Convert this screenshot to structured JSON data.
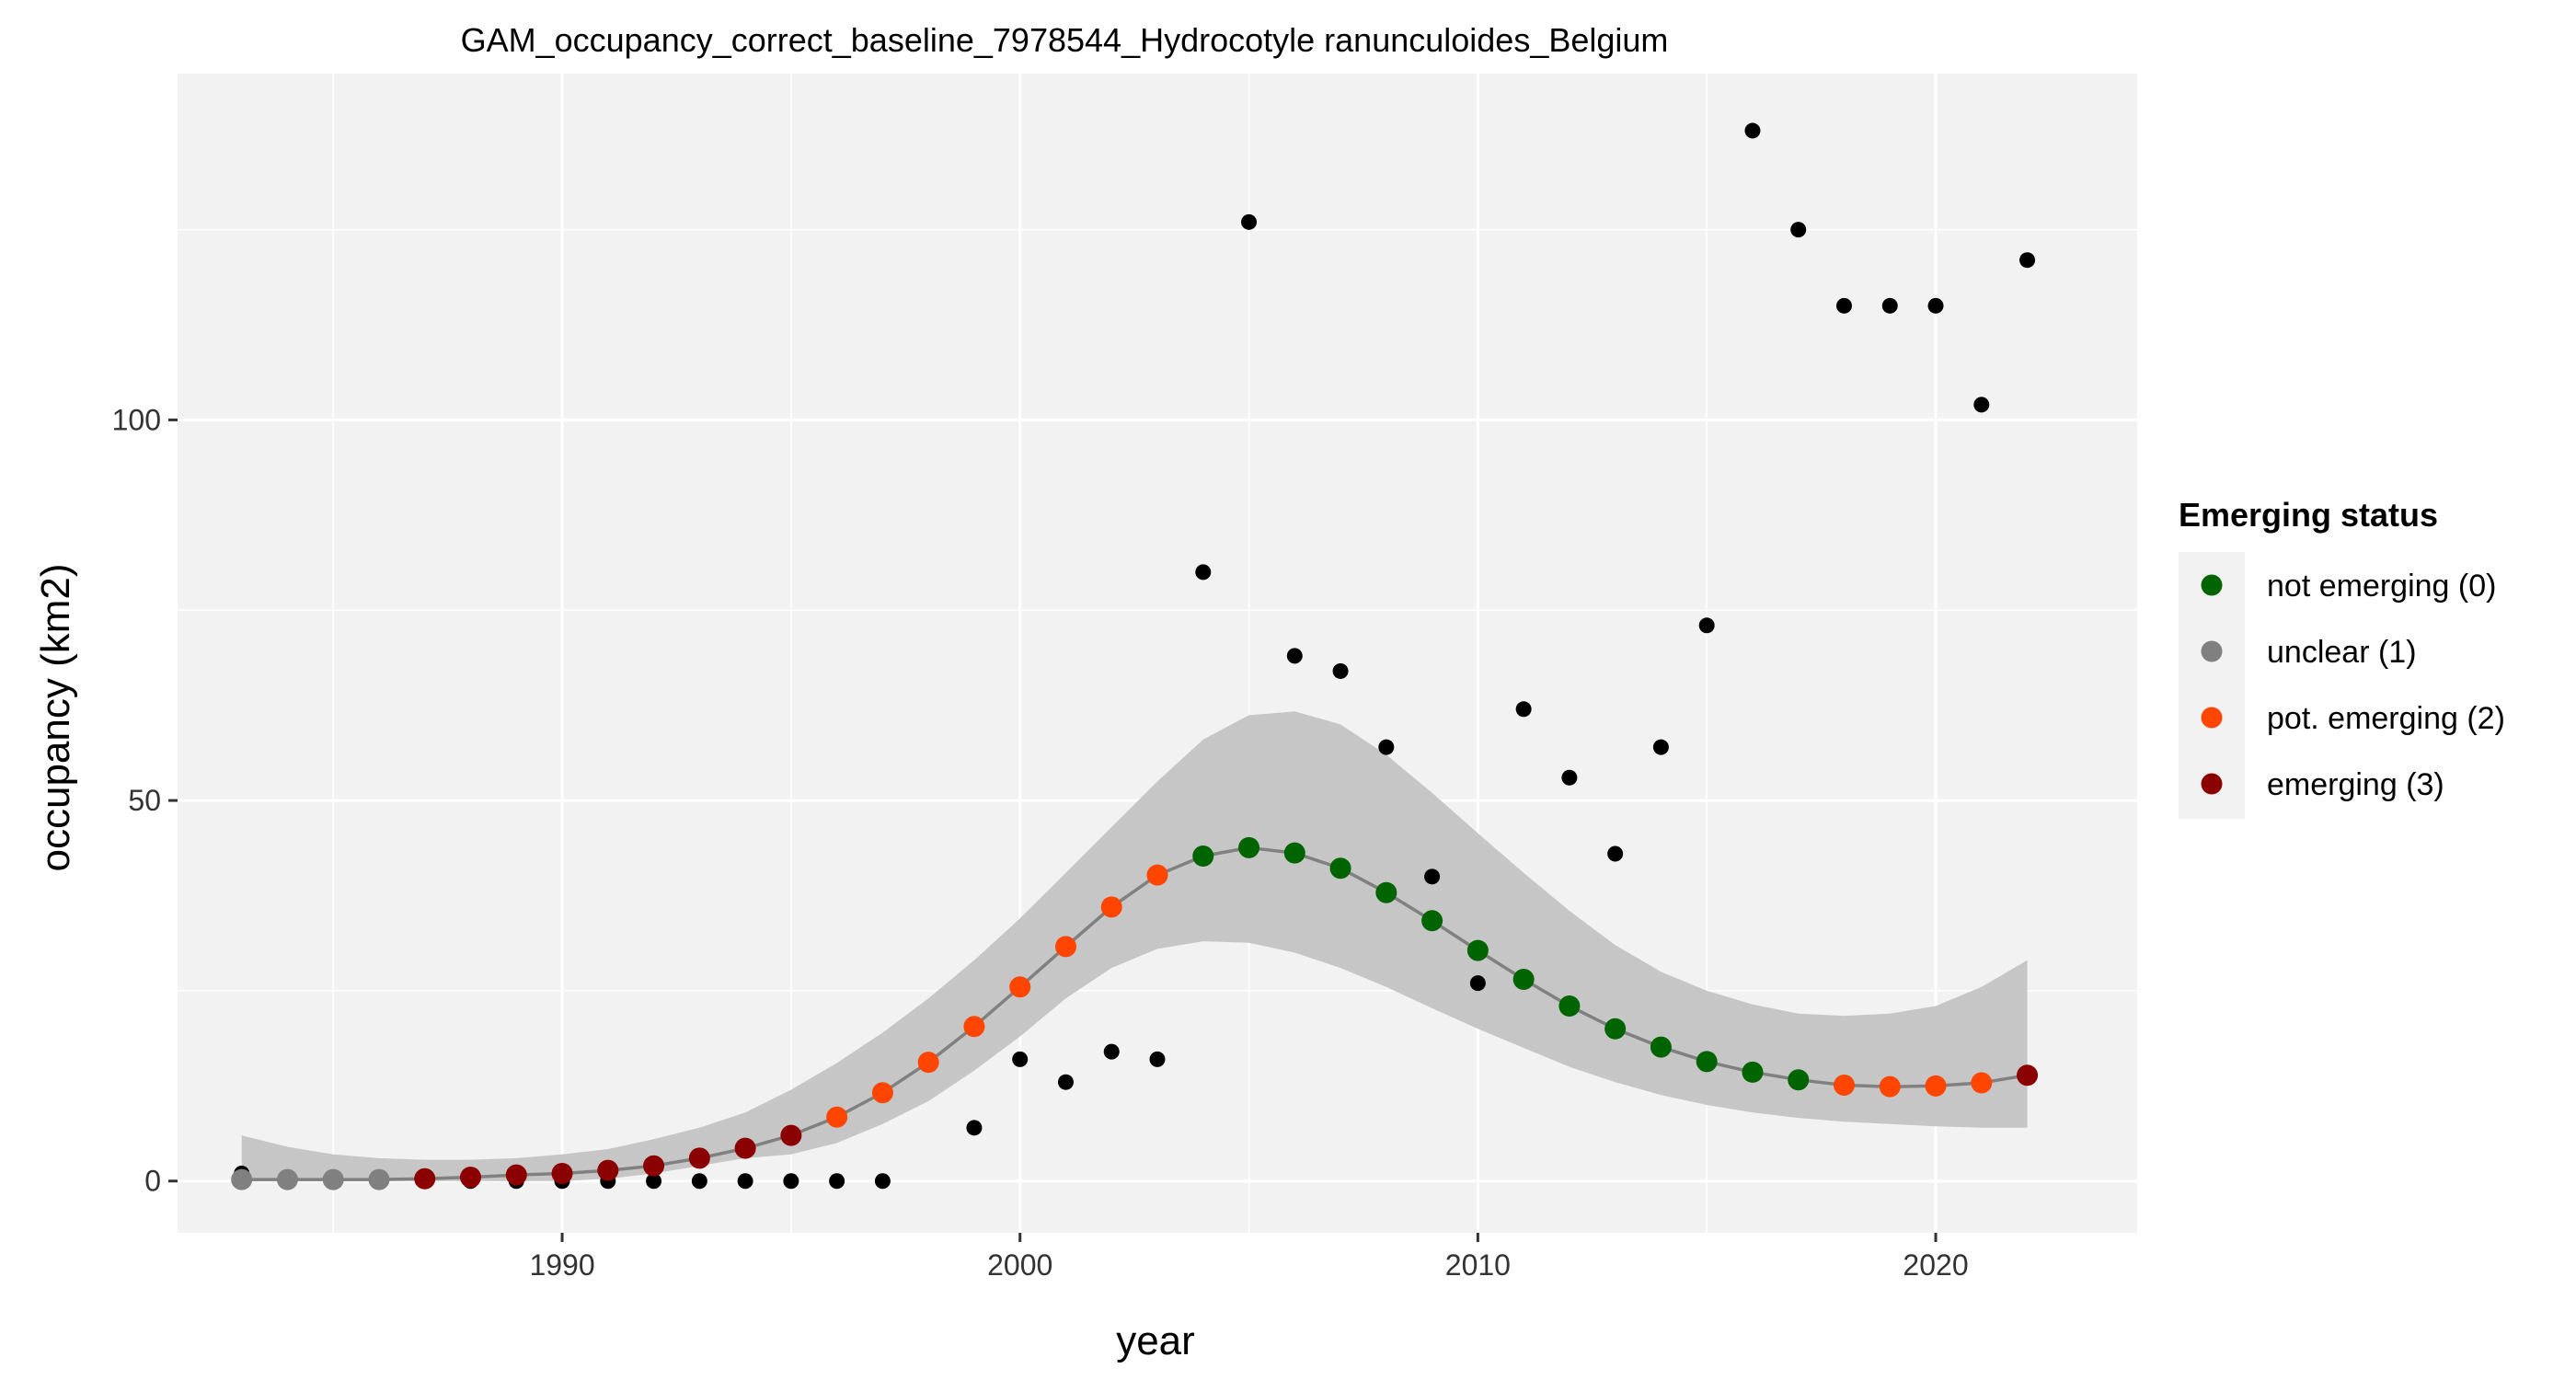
{
  "chart_data": {
    "type": "scatter",
    "title": "GAM_occupancy_correct_baseline_7978544_Hydrocotyle ranunculoides_Belgium",
    "xlabel": "year",
    "ylabel": "occupancy (km2)",
    "xlim": [
      1981.6,
      2024.4
    ],
    "ylim": [
      -6.8,
      145.5
    ],
    "x_ticks": [
      1990,
      2000,
      2010,
      2020
    ],
    "y_ticks": [
      0,
      50,
      100
    ],
    "grid": true,
    "legend": {
      "title": "Emerging status",
      "position": "right",
      "entries": [
        {
          "label": "not emerging (0)",
          "color": "#006400"
        },
        {
          "label": "unclear (1)",
          "color": "#808080"
        },
        {
          "label": "pot. emerging (2)",
          "color": "#FF4500"
        },
        {
          "label": "emerging (3)",
          "color": "#8B0000"
        }
      ]
    },
    "observed": {
      "color": "#000000",
      "points": [
        [
          1983,
          1
        ],
        [
          1984,
          0
        ],
        [
          1985,
          0
        ],
        [
          1986,
          0
        ],
        [
          1987,
          0
        ],
        [
          1988,
          0
        ],
        [
          1989,
          0
        ],
        [
          1990,
          0
        ],
        [
          1991,
          0
        ],
        [
          1992,
          0
        ],
        [
          1993,
          0
        ],
        [
          1994,
          0
        ],
        [
          1995,
          0
        ],
        [
          1996,
          0
        ],
        [
          1997,
          0
        ],
        [
          1999,
          7
        ],
        [
          2000,
          16
        ],
        [
          2001,
          13
        ],
        [
          2002,
          17
        ],
        [
          2003,
          16
        ],
        [
          2004,
          80
        ],
        [
          2005,
          126
        ],
        [
          2006,
          69
        ],
        [
          2007,
          67
        ],
        [
          2008,
          57
        ],
        [
          2009,
          40
        ],
        [
          2010,
          26
        ],
        [
          2011,
          62
        ],
        [
          2012,
          53
        ],
        [
          2013,
          43
        ],
        [
          2014,
          57
        ],
        [
          2015,
          73
        ],
        [
          2016,
          138
        ],
        [
          2017,
          125
        ],
        [
          2018,
          115
        ],
        [
          2019,
          115
        ],
        [
          2020,
          115
        ],
        [
          2021,
          102
        ],
        [
          2022,
          121
        ]
      ]
    },
    "ribbon": {
      "color": "#C6C6C6",
      "x": [
        1983,
        1984,
        1985,
        1986,
        1987,
        1988,
        1989,
        1990,
        1991,
        1992,
        1993,
        1994,
        1995,
        1996,
        1997,
        1998,
        1999,
        2000,
        2001,
        2002,
        2003,
        2004,
        2005,
        2006,
        2007,
        2008,
        2009,
        2010,
        2011,
        2012,
        2013,
        2014,
        2015,
        2016,
        2017,
        2018,
        2019,
        2020,
        2021,
        2022
      ],
      "lower": [
        0,
        0,
        0,
        0,
        0,
        0,
        0,
        0,
        0.3,
        1,
        2,
        3,
        3.5,
        5,
        7.5,
        10.5,
        14.5,
        19,
        24,
        28,
        30.5,
        31.5,
        31.3,
        30,
        28,
        25.5,
        22.7,
        20,
        17.5,
        15,
        13,
        11.3,
        10,
        9,
        8.3,
        7.8,
        7.5,
        7.2,
        7,
        7
      ],
      "upper": [
        6,
        4.5,
        3.5,
        3,
        2.8,
        2.8,
        3,
        3.5,
        4.2,
        5.5,
        7,
        9,
        12,
        15.5,
        19.5,
        24,
        29,
        34.5,
        40.5,
        46.5,
        52.5,
        58,
        61.2,
        61.7,
        60,
        56,
        51,
        45.7,
        40.5,
        35.5,
        31,
        27.5,
        25,
        23.2,
        22,
        21.7,
        22,
        23,
        25.5,
        29
      ]
    },
    "fit": {
      "color": "#808080",
      "points": [
        {
          "x": 1983,
          "y": 0.2,
          "status": 1
        },
        {
          "x": 1984,
          "y": 0.2,
          "status": 1
        },
        {
          "x": 1985,
          "y": 0.2,
          "status": 1
        },
        {
          "x": 1986,
          "y": 0.2,
          "status": 1
        },
        {
          "x": 1987,
          "y": 0.3,
          "status": 3
        },
        {
          "x": 1988,
          "y": 0.5,
          "status": 3
        },
        {
          "x": 1989,
          "y": 0.8,
          "status": 3
        },
        {
          "x": 1990,
          "y": 1.0,
          "status": 3
        },
        {
          "x": 1991,
          "y": 1.4,
          "status": 3
        },
        {
          "x": 1992,
          "y": 2.0,
          "status": 3
        },
        {
          "x": 1993,
          "y": 3.0,
          "status": 3
        },
        {
          "x": 1994,
          "y": 4.3,
          "status": 3
        },
        {
          "x": 1995,
          "y": 6.0,
          "status": 3
        },
        {
          "x": 1996,
          "y": 8.4,
          "status": 2
        },
        {
          "x": 1997,
          "y": 11.6,
          "status": 2
        },
        {
          "x": 1998,
          "y": 15.6,
          "status": 2
        },
        {
          "x": 1999,
          "y": 20.3,
          "status": 2
        },
        {
          "x": 2000,
          "y": 25.5,
          "status": 2
        },
        {
          "x": 2001,
          "y": 30.8,
          "status": 2
        },
        {
          "x": 2002,
          "y": 36.0,
          "status": 2
        },
        {
          "x": 2003,
          "y": 40.2,
          "status": 2
        },
        {
          "x": 2004,
          "y": 42.7,
          "status": 0
        },
        {
          "x": 2005,
          "y": 43.8,
          "status": 0
        },
        {
          "x": 2006,
          "y": 43.1,
          "status": 0
        },
        {
          "x": 2007,
          "y": 41.1,
          "status": 0
        },
        {
          "x": 2008,
          "y": 37.9,
          "status": 0
        },
        {
          "x": 2009,
          "y": 34.2,
          "status": 0
        },
        {
          "x": 2010,
          "y": 30.3,
          "status": 0
        },
        {
          "x": 2011,
          "y": 26.5,
          "status": 0
        },
        {
          "x": 2012,
          "y": 23.0,
          "status": 0
        },
        {
          "x": 2013,
          "y": 20.0,
          "status": 0
        },
        {
          "x": 2014,
          "y": 17.6,
          "status": 0
        },
        {
          "x": 2015,
          "y": 15.7,
          "status": 0
        },
        {
          "x": 2016,
          "y": 14.3,
          "status": 0
        },
        {
          "x": 2017,
          "y": 13.3,
          "status": 0
        },
        {
          "x": 2018,
          "y": 12.6,
          "status": 2
        },
        {
          "x": 2019,
          "y": 12.4,
          "status": 2
        },
        {
          "x": 2020,
          "y": 12.5,
          "status": 2
        },
        {
          "x": 2021,
          "y": 12.9,
          "status": 2
        },
        {
          "x": 2022,
          "y": 13.9,
          "status": 3
        }
      ]
    }
  }
}
